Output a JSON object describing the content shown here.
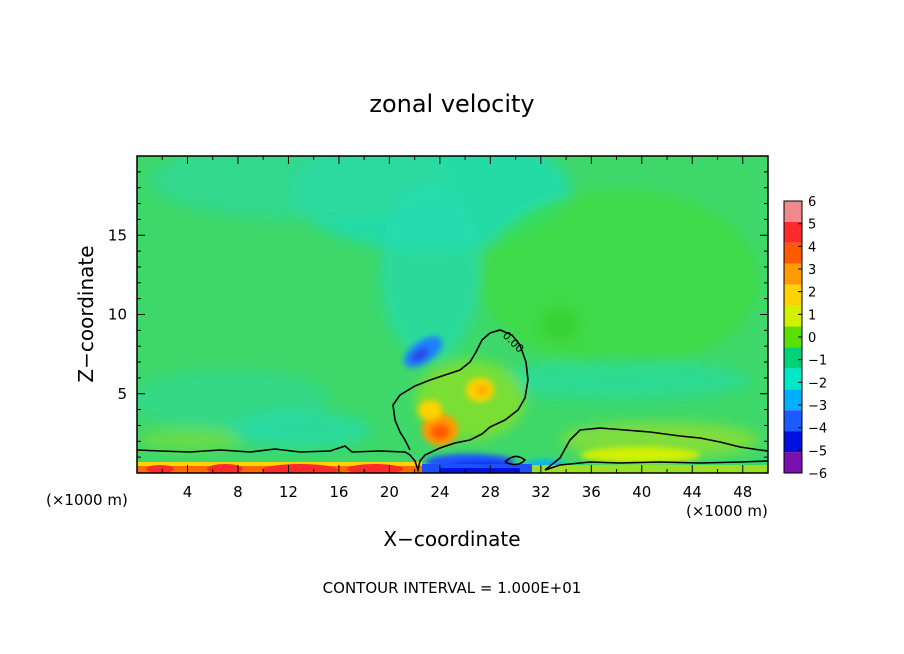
{
  "chart_data": {
    "type": "heatmap",
    "title": "zonal velocity",
    "xlabel": "X−coordinate",
    "ylabel": "Z−coordinate",
    "x_unit_left": "(×1000 m)",
    "x_unit_right": "(×1000 m)",
    "footer": "CONTOUR INTERVAL = 1.000E+01",
    "xlim": [
      0,
      50
    ],
    "ylim": [
      0,
      20
    ],
    "x_ticks": [
      4,
      8,
      12,
      16,
      20,
      24,
      28,
      32,
      36,
      40,
      44,
      48
    ],
    "x_tick_labels": [
      "4",
      "8",
      "12",
      "16",
      "20",
      "24",
      "28",
      "32",
      "36",
      "40",
      "44",
      "48"
    ],
    "y_ticks": [
      5,
      10,
      15
    ],
    "y_tick_labels": [
      "5",
      "10",
      "15"
    ],
    "colorbar": {
      "levels": [
        6,
        5,
        4,
        3,
        2,
        1,
        0,
        -1,
        -2,
        -3,
        -4,
        -5,
        -6
      ],
      "labels": [
        "6",
        "5",
        "4",
        "3",
        "2",
        "1",
        "0",
        "−1",
        "−2",
        "−3",
        "−4",
        "−5",
        "−6"
      ],
      "colors": [
        "#f08a8a",
        "#ff2a2a",
        "#ff5a00",
        "#ff9a00",
        "#ffd200",
        "#d2f000",
        "#5ae000",
        "#00d27a",
        "#00e8c8",
        "#00b0ff",
        "#1a5aff",
        "#0010e0",
        "#7a10b0"
      ]
    },
    "contour_labels": [
      {
        "x": 28.6,
        "y": 8.2,
        "text": "0.00"
      }
    ],
    "background_color": "#3ed86a"
  }
}
